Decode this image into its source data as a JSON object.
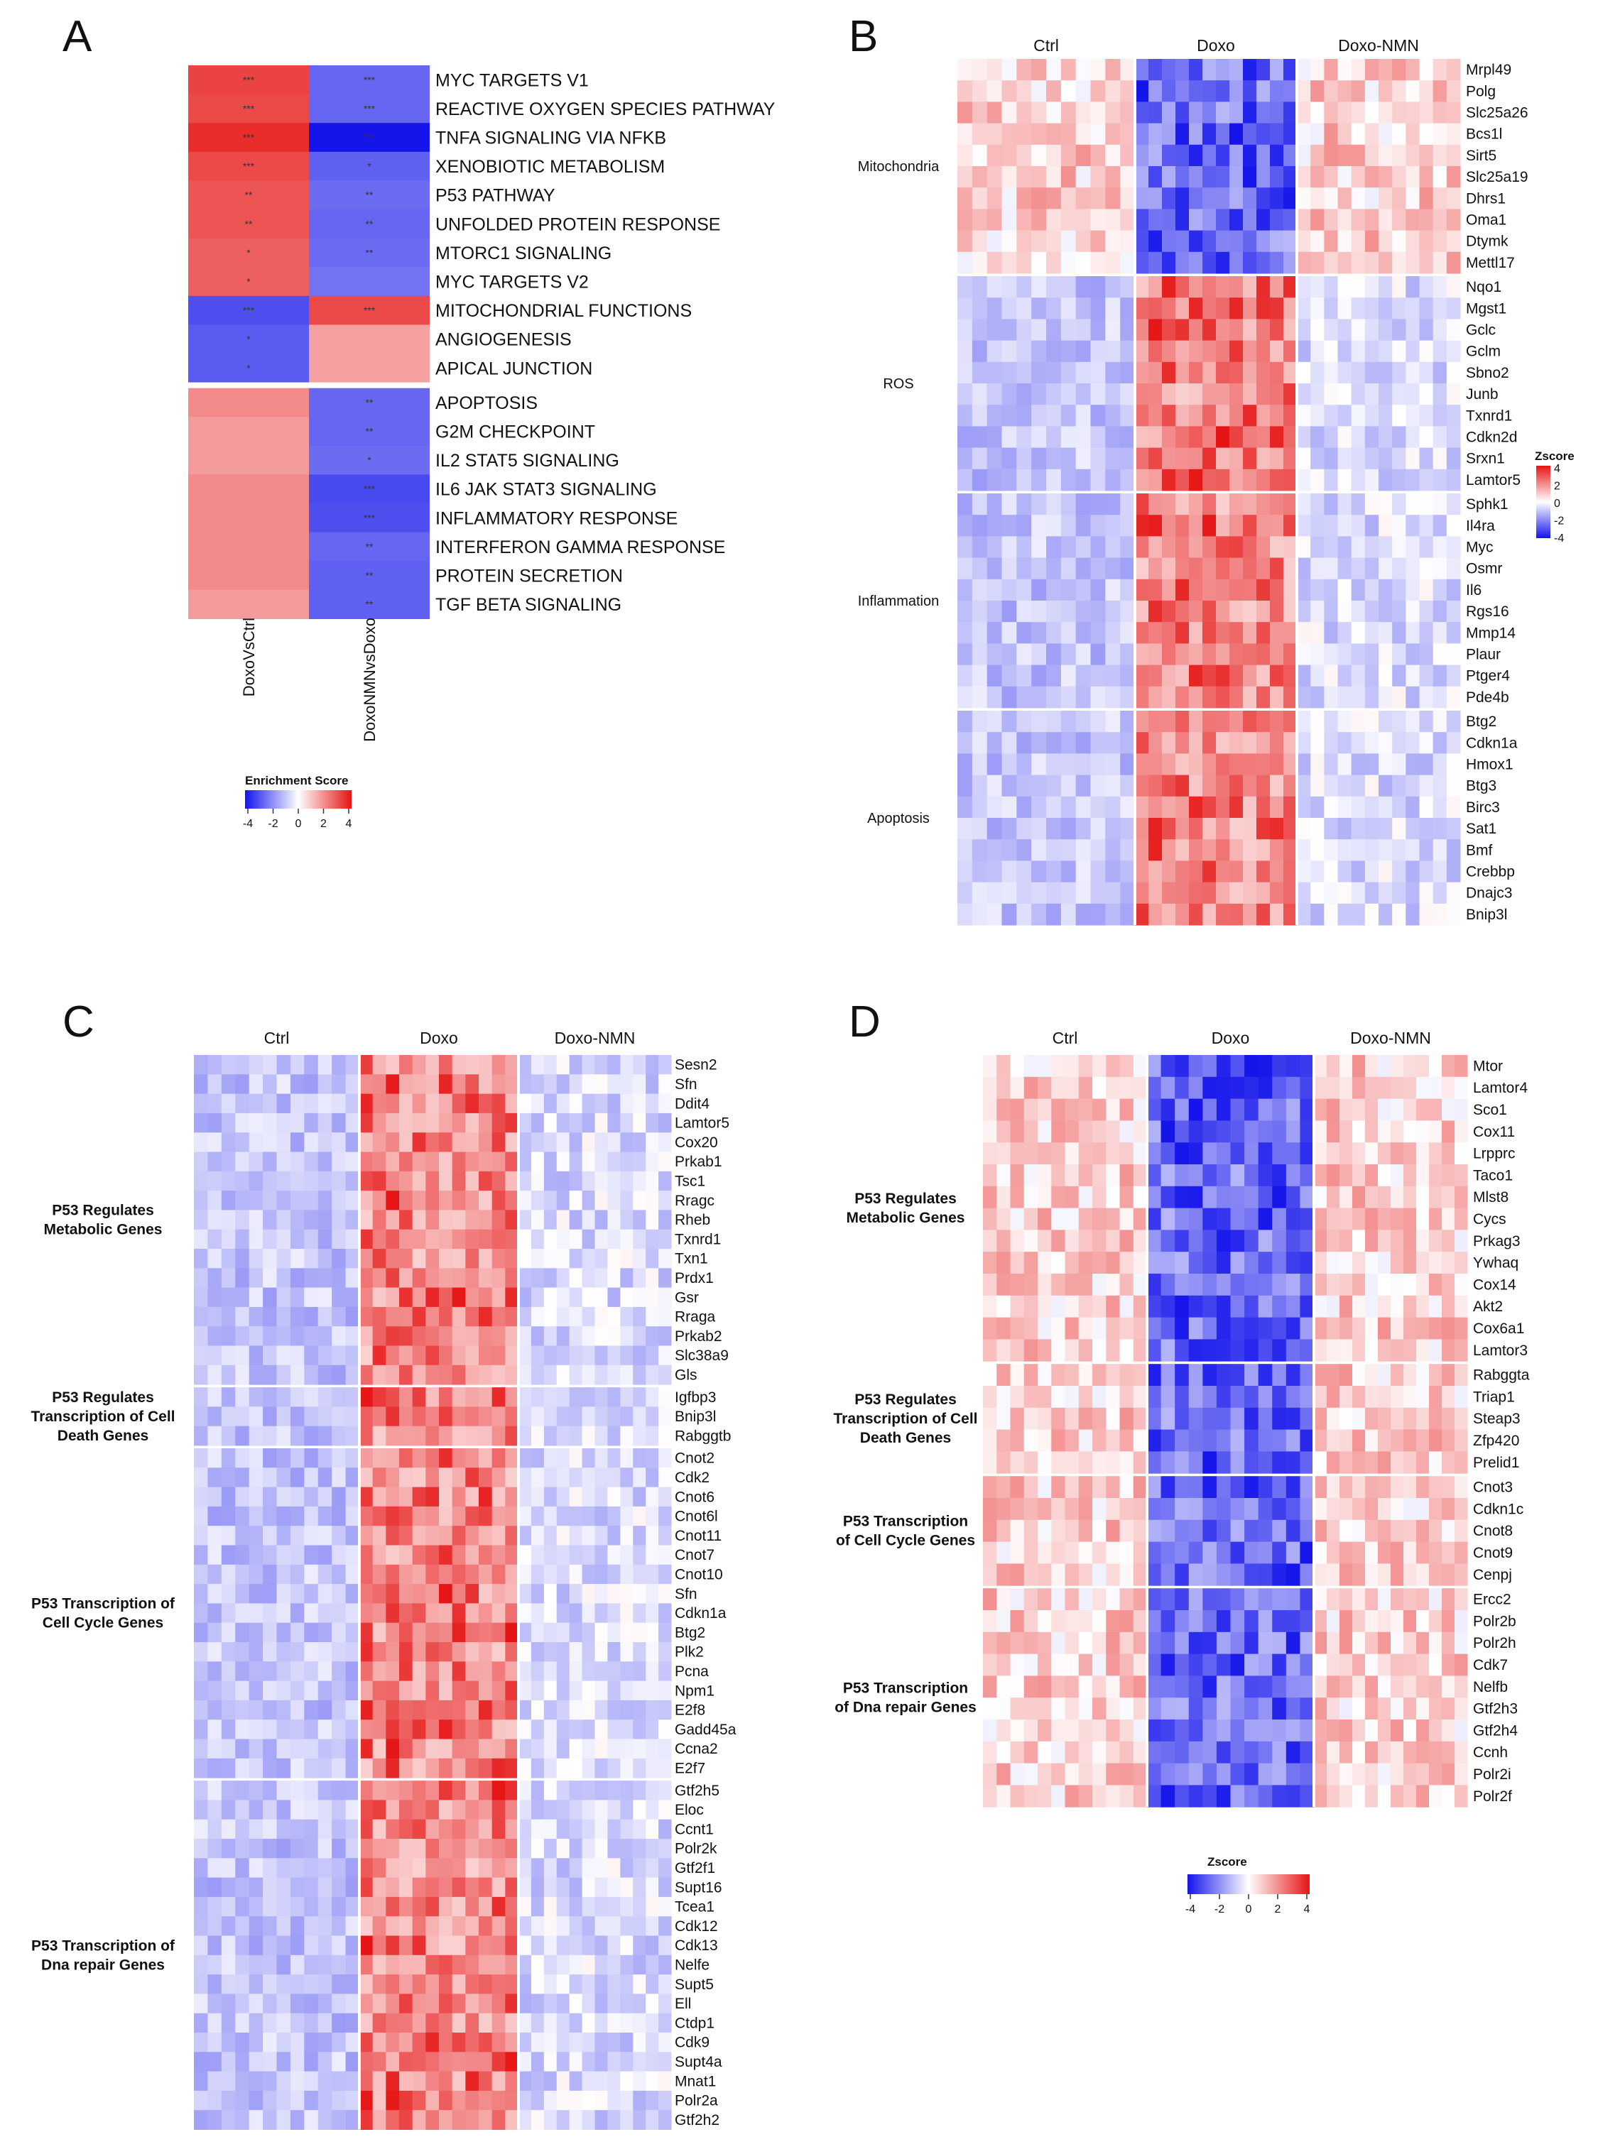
{
  "chart_data": [
    {
      "panel": "A",
      "type": "heatmap",
      "columns": [
        "DoxoVsCtrl",
        "DoxoNMNvsDoxo"
      ],
      "legend": {
        "title": "Enrichment Score",
        "ticks": [
          "-4",
          "-2",
          "0",
          "2",
          "4"
        ]
      },
      "rows": [
        {
          "label": "MYC TARGETS V1",
          "values": [
            3.2,
            -2.6
          ],
          "stars": [
            "***",
            "***"
          ]
        },
        {
          "label": "REACTIVE OXYGEN SPECIES PATHWAY",
          "values": [
            3.1,
            -2.6
          ],
          "stars": [
            "***",
            "***"
          ]
        },
        {
          "label": "TNFA SIGNALING VIA NFKB",
          "values": [
            3.6,
            -4.0
          ],
          "stars": [
            "***",
            "***"
          ]
        },
        {
          "label": "XENOBIOTIC METABOLISM",
          "values": [
            3.1,
            -2.7
          ],
          "stars": [
            "***",
            "*"
          ]
        },
        {
          "label": "P53 PATHWAY",
          "values": [
            2.9,
            -2.5
          ],
          "stars": [
            "**",
            "**"
          ]
        },
        {
          "label": "UNFOLDED PROTEIN RESPONSE",
          "values": [
            2.9,
            -2.6
          ],
          "stars": [
            "**",
            "**"
          ]
        },
        {
          "label": "MTORC1 SIGNALING",
          "values": [
            2.7,
            -2.5
          ],
          "stars": [
            "*",
            "**"
          ]
        },
        {
          "label": "MYC TARGETS V2",
          "values": [
            2.7,
            -2.4
          ],
          "stars": [
            "*",
            ""
          ]
        },
        {
          "label": "MITOCHONDRIAL FUNCTIONS",
          "values": [
            -3.0,
            3.1
          ],
          "stars": [
            "***",
            "***"
          ]
        },
        {
          "label": "ANGIOGENESIS",
          "values": [
            -2.8,
            1.6
          ],
          "stars": [
            "*",
            ""
          ]
        },
        {
          "label": "APICAL JUNCTION",
          "values": [
            -2.8,
            1.6
          ],
          "stars": [
            "*",
            ""
          ]
        },
        {
          "label": "APOPTOSIS",
          "values": [
            2.0,
            -2.6
          ],
          "stars": [
            "",
            "**"
          ]
        },
        {
          "label": "G2M CHECKPOINT",
          "values": [
            1.7,
            -2.6
          ],
          "stars": [
            "",
            "**"
          ]
        },
        {
          "label": "IL2 STAT5 SIGNALING",
          "values": [
            1.7,
            -2.5
          ],
          "stars": [
            "",
            "*"
          ]
        },
        {
          "label": "IL6 JAK STAT3 SIGNALING",
          "values": [
            2.0,
            -3.1
          ],
          "stars": [
            "",
            "***"
          ]
        },
        {
          "label": "INFLAMMATORY RESPONSE",
          "values": [
            2.0,
            -3.0
          ],
          "stars": [
            "",
            "***"
          ]
        },
        {
          "label": "INTERFERON GAMMA RESPONSE",
          "values": [
            2.0,
            -2.6
          ],
          "stars": [
            "",
            "**"
          ]
        },
        {
          "label": "PROTEIN SECRETION",
          "values": [
            2.0,
            -2.7
          ],
          "stars": [
            "",
            "**"
          ]
        },
        {
          "label": "TGF BETA SIGNALING",
          "values": [
            1.7,
            -2.7
          ],
          "stars": [
            "",
            "**"
          ]
        }
      ]
    },
    {
      "panel": "B",
      "type": "heatmap",
      "groups": [
        "Ctrl",
        "Doxo",
        "Doxo-NMN"
      ],
      "legend": {
        "title": "Zscore",
        "ticks": [
          "4",
          "2",
          "0",
          "-2",
          "-4"
        ]
      },
      "categories": [
        {
          "name": "Mitochondria",
          "pattern": "down",
          "genes": [
            "Mrpl49",
            "Polg",
            "Slc25a26",
            "Bcs1l",
            "Sirt5",
            "Slc25a19",
            "Dhrs1",
            "Oma1",
            "Dtymk",
            "Mettl17"
          ]
        },
        {
          "name": "ROS",
          "pattern": "up",
          "genes": [
            "Nqo1",
            "Mgst1",
            "Gclc",
            "Gclm",
            "Sbno2",
            "Junb",
            "Txnrd1",
            "Cdkn2d",
            "Srxn1",
            "Lamtor5"
          ]
        },
        {
          "name": "Inflammation",
          "pattern": "up",
          "genes": [
            "Sphk1",
            "Il4ra",
            "Myc",
            "Osmr",
            "Il6",
            "Rgs16",
            "Mmp14",
            "Plaur",
            "Ptger4",
            "Pde4b"
          ]
        },
        {
          "name": "Apoptosis",
          "pattern": "up",
          "genes": [
            "Btg2",
            "Cdkn1a",
            "Hmox1",
            "Btg3",
            "Birc3",
            "Sat1",
            "Bmf",
            "Crebbp",
            "Dnajc3",
            "Bnip3l"
          ]
        }
      ]
    },
    {
      "panel": "C",
      "type": "heatmap",
      "groups": [
        "Ctrl",
        "Doxo",
        "Doxo-NMN"
      ],
      "categories": [
        {
          "name": "P53 Regulates Metabolic Genes",
          "pattern": "up",
          "genes": [
            "Sesn2",
            "Sfn",
            "Ddit4",
            "Lamtor5",
            "Cox20",
            "Prkab1",
            "Tsc1",
            "Rragc",
            "Rheb",
            "Txnrd1",
            "Txn1",
            "Prdx1",
            "Gsr",
            "Rraga",
            "Prkab2",
            "Slc38a9",
            "Gls"
          ]
        },
        {
          "name": "P53 Regulates Transcription of Cell Death Genes",
          "pattern": "up",
          "genes": [
            "Igfbp3",
            "Bnip3l",
            "Rabggtb"
          ]
        },
        {
          "name": "P53 Transcription of Cell Cycle Genes",
          "pattern": "up",
          "genes": [
            "Cnot2",
            "Cdk2",
            "Cnot6",
            "Cnot6l",
            "Cnot11",
            "Cnot7",
            "Cnot10",
            "Sfn",
            "Cdkn1a",
            "Btg2",
            "Plk2",
            "Pcna",
            "Npm1",
            "E2f8",
            "Gadd45a",
            "Ccna2",
            "E2f7"
          ]
        },
        {
          "name": "P53 Transcription of Dna repair Genes",
          "pattern": "up",
          "genes": [
            "Gtf2h5",
            "Eloc",
            "Ccnt1",
            "Polr2k",
            "Gtf2f1",
            "Supt16",
            "Tcea1",
            "Cdk12",
            "Cdk13",
            "Nelfe",
            "Supt5",
            "Ell",
            "Ctdp1",
            "Cdk9",
            "Supt4a",
            "Mnat1",
            "Polr2a",
            "Gtf2h2"
          ]
        }
      ]
    },
    {
      "panel": "D",
      "type": "heatmap",
      "groups": [
        "Ctrl",
        "Doxo",
        "Doxo-NMN"
      ],
      "legend": {
        "title": "Zscore",
        "ticks": [
          "-4",
          "-2",
          "0",
          "2",
          "4"
        ]
      },
      "categories": [
        {
          "name": "P53 Regulates Metabolic Genes",
          "pattern": "down",
          "genes": [
            "Mtor",
            "Lamtor4",
            "Sco1",
            "Cox11",
            "Lrpprc",
            "Taco1",
            "Mlst8",
            "Cycs",
            "Prkag3",
            "Ywhaq",
            "Cox14",
            "Akt2",
            "Cox6a1",
            "Lamtor3"
          ]
        },
        {
          "name": "P53 Regulates Transcription of Cell Death Genes",
          "pattern": "down",
          "genes": [
            "Rabggta",
            "Triap1",
            "Steap3",
            "Zfp420",
            "Prelid1"
          ]
        },
        {
          "name": "P53 Transcription of Cell Cycle Genes",
          "pattern": "down",
          "genes": [
            "Cnot3",
            "Cdkn1c",
            "Cnot8",
            "Cnot9",
            "Cenpj"
          ]
        },
        {
          "name": "P53 Transcription of Dna repair Genes",
          "pattern": "down",
          "genes": [
            "Ercc2",
            "Polr2b",
            "Polr2h",
            "Cdk7",
            "Nelfb",
            "Gtf2h3",
            "Gtf2h4",
            "Ccnh",
            "Polr2i",
            "Polr2f"
          ]
        }
      ]
    }
  ],
  "panel_letters": [
    "A",
    "B",
    "C",
    "D"
  ]
}
